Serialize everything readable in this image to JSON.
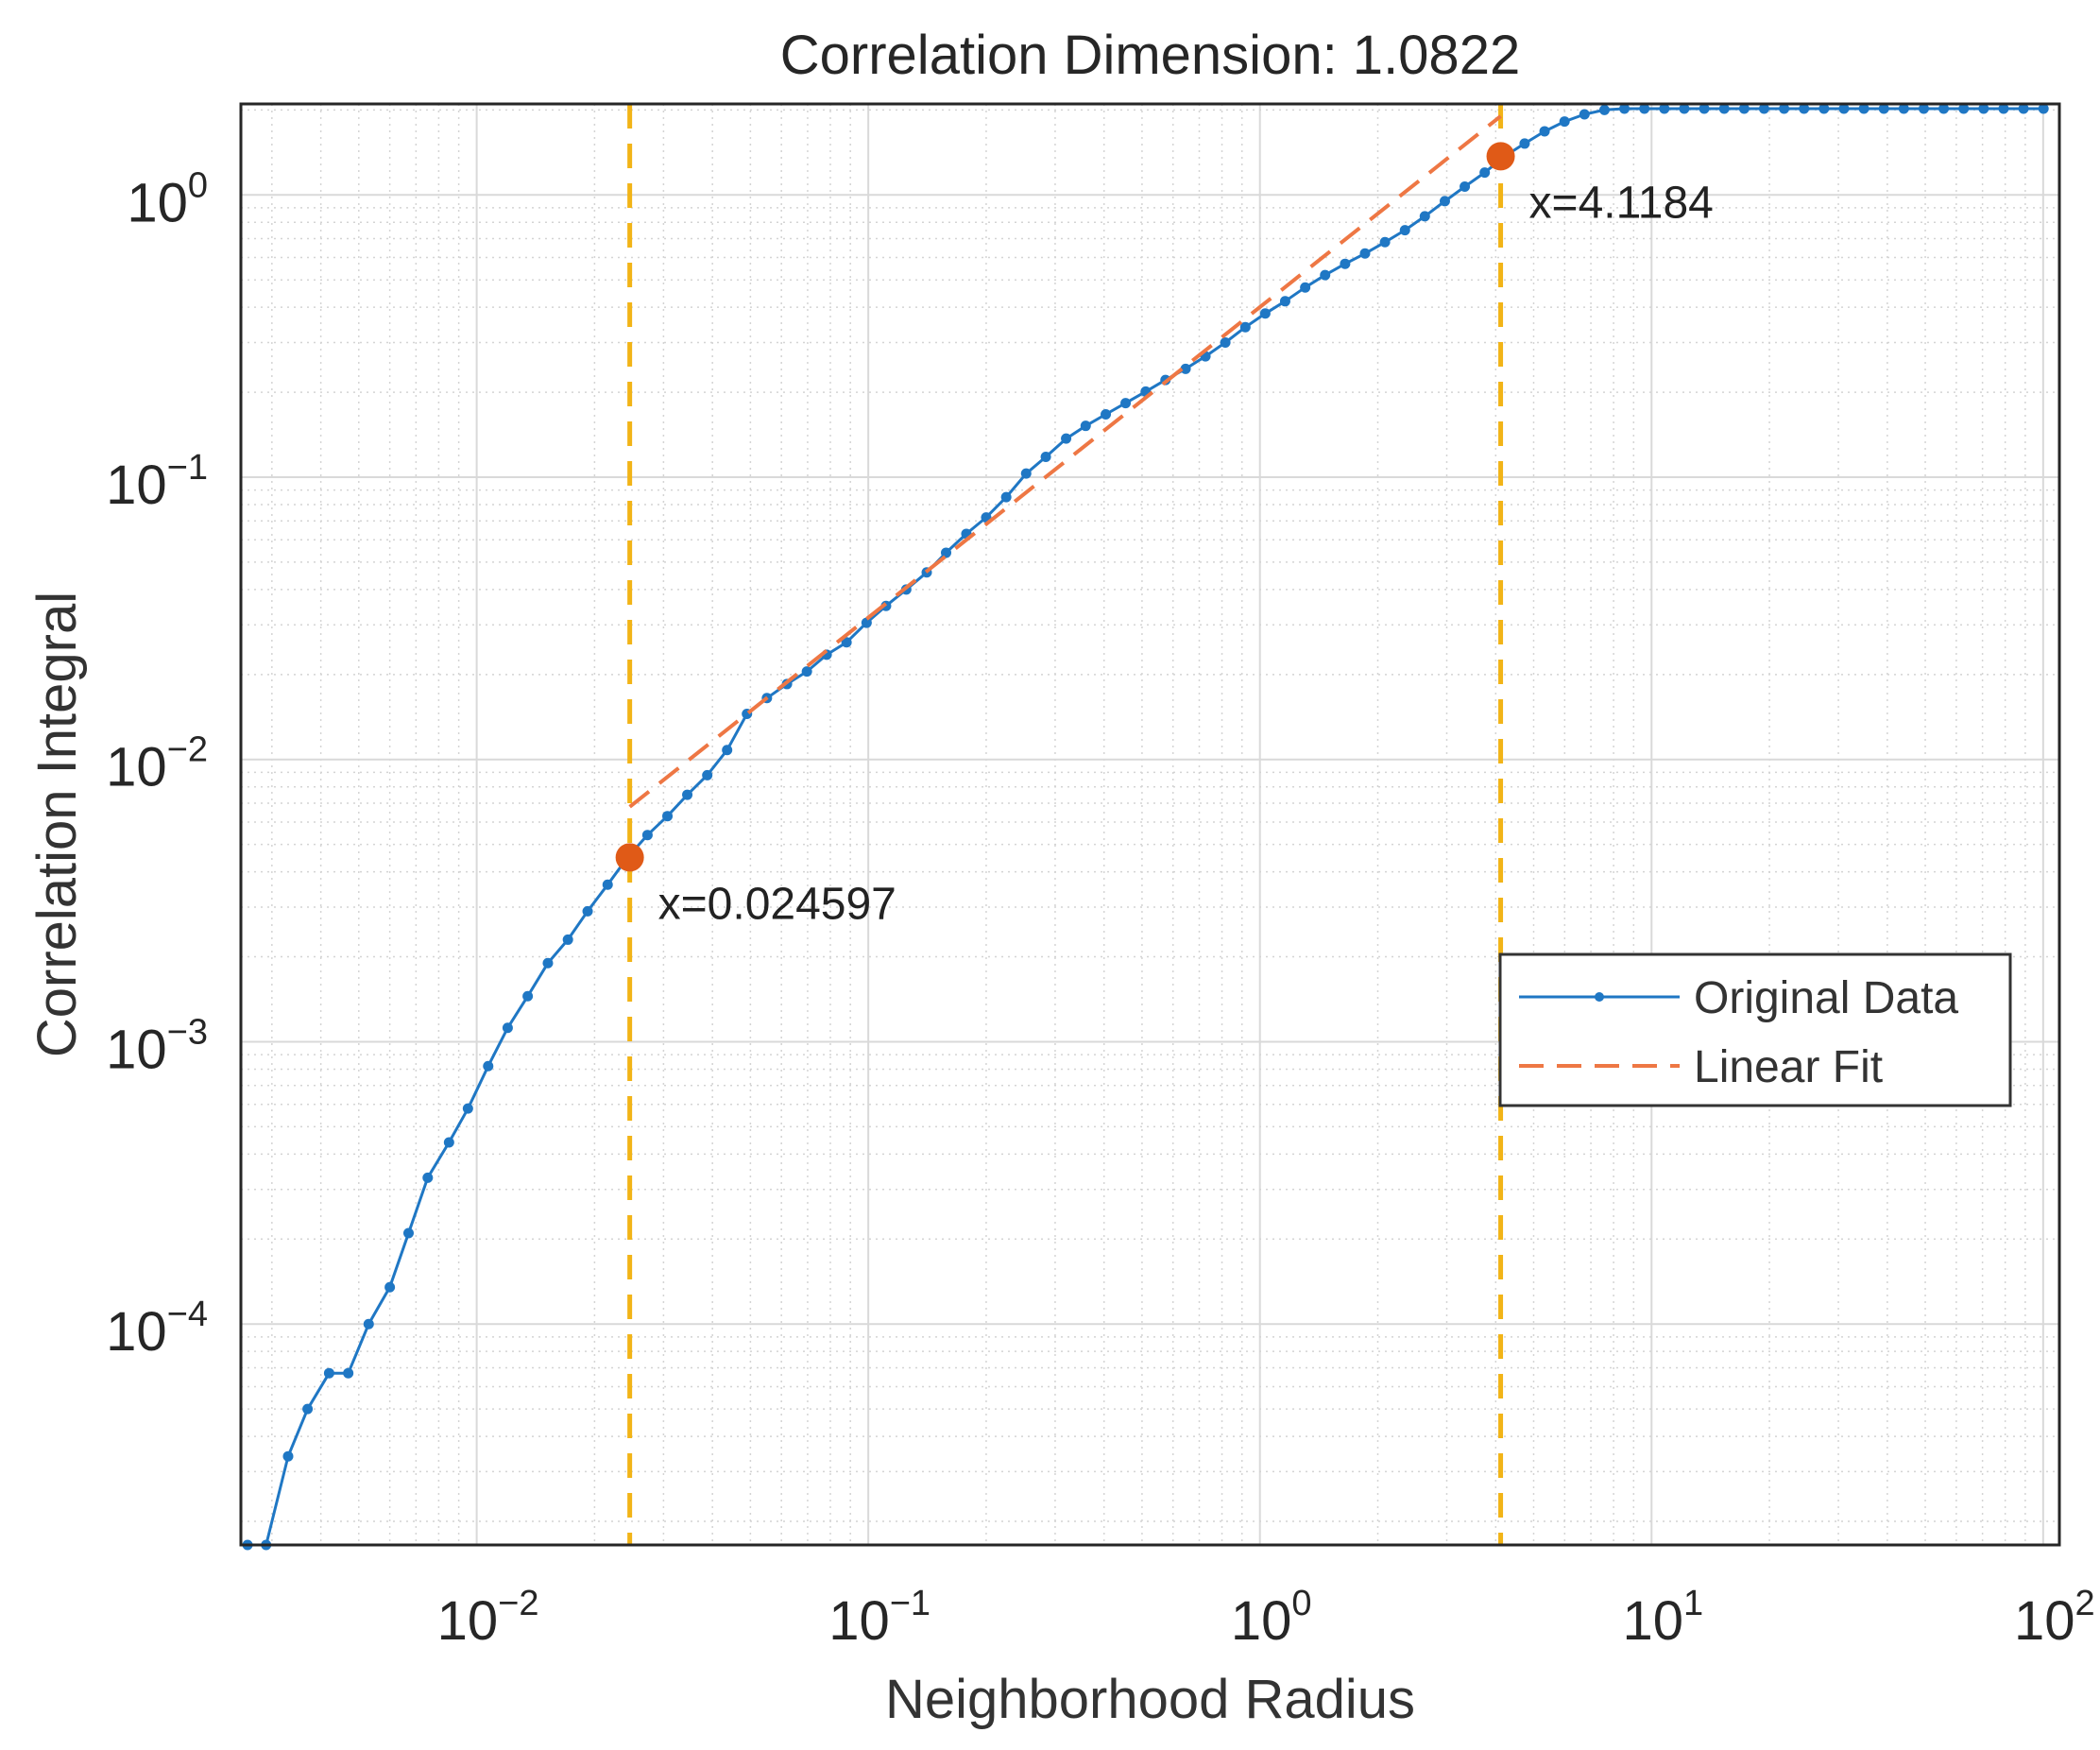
{
  "chart_data": {
    "type": "line",
    "title": "Correlation Dimension: 1.0822",
    "xlabel": "Neighborhood Radius",
    "ylabel": "Correlation Integral",
    "xscale": "log",
    "yscale": "log",
    "xlim": [
      0.0025,
      110
    ],
    "ylim": [
      1.65e-05,
      2.1
    ],
    "grid": true,
    "minor_grid": true,
    "legend_position": "lower-right",
    "x_ticks": [
      {
        "base": "10",
        "exp": "−2",
        "value": 0.01
      },
      {
        "base": "10",
        "exp": "−1",
        "value": 0.1
      },
      {
        "base": "10",
        "exp": "0",
        "value": 1
      },
      {
        "base": "10",
        "exp": "1",
        "value": 10
      },
      {
        "base": "10",
        "exp": "2",
        "value": 100
      }
    ],
    "y_ticks": [
      {
        "base": "10",
        "exp": "−4",
        "value": 0.0001
      },
      {
        "base": "10",
        "exp": "−3",
        "value": 0.001
      },
      {
        "base": "10",
        "exp": "−2",
        "value": 0.01
      },
      {
        "base": "10",
        "exp": "−1",
        "value": 0.1
      },
      {
        "base": "10",
        "exp": "0",
        "value": 1
      }
    ],
    "series": [
      {
        "name": "Original Data",
        "style": "solid-dot",
        "color": "#1f77c4",
        "x": [
          0.0026,
          0.0029,
          0.0033,
          0.0037,
          0.0042,
          0.0047,
          0.0053,
          0.006,
          0.0067,
          0.0075,
          0.0085,
          0.0095,
          0.0107,
          0.012,
          0.0135,
          0.0152,
          0.0171,
          0.0192,
          0.0216,
          0.0243,
          0.0273,
          0.0307,
          0.0345,
          0.0388,
          0.0436,
          0.049,
          0.0551,
          0.062,
          0.0697,
          0.0783,
          0.088,
          0.099,
          0.111,
          0.125,
          0.141,
          0.158,
          0.178,
          0.2,
          0.225,
          0.253,
          0.284,
          0.32,
          0.359,
          0.404,
          0.454,
          0.511,
          0.574,
          0.646,
          0.726,
          0.816,
          0.918,
          1.032,
          1.16,
          1.305,
          1.467,
          1.65,
          1.855,
          2.086,
          2.346,
          2.637,
          2.966,
          3.335,
          3.75,
          4.217,
          4.742,
          5.332,
          5.996,
          6.742,
          7.582,
          8.525,
          9.587,
          10.78,
          12.12,
          13.63,
          15.33,
          17.24,
          19.38,
          21.8,
          24.51,
          27.56,
          30.99,
          34.85,
          39.19,
          44.07,
          49.56,
          55.72,
          62.66,
          70.46,
          79.23,
          89.1,
          100.2
        ],
        "y": [
          1.65e-05,
          1.65e-05,
          3.4e-05,
          5e-05,
          6.7e-05,
          6.7e-05,
          0.0001,
          0.000135,
          0.00021,
          0.00033,
          0.00044,
          0.00058,
          0.00082,
          0.00112,
          0.00145,
          0.0019,
          0.0023,
          0.0029,
          0.0036,
          0.0045,
          0.0054,
          0.0063,
          0.0075,
          0.0088,
          0.0108,
          0.0145,
          0.0165,
          0.0185,
          0.0205,
          0.0235,
          0.026,
          0.0305,
          0.035,
          0.04,
          0.046,
          0.054,
          0.063,
          0.072,
          0.085,
          0.103,
          0.118,
          0.137,
          0.152,
          0.167,
          0.183,
          0.201,
          0.221,
          0.242,
          0.268,
          0.3,
          0.34,
          0.38,
          0.42,
          0.47,
          0.52,
          0.57,
          0.62,
          0.68,
          0.75,
          0.84,
          0.95,
          1.07,
          1.2,
          1.37,
          1.52,
          1.68,
          1.82,
          1.93,
          2.0,
          2.02,
          2.02,
          2.02,
          2.02,
          2.02,
          2.02,
          2.02,
          2.02,
          2.02,
          2.02,
          2.02,
          2.02,
          2.02,
          2.02,
          2.02,
          2.02,
          2.02,
          2.02,
          2.02,
          2.02,
          2.02,
          2.02
        ]
      },
      {
        "name": "Linear Fit",
        "style": "dashed",
        "color": "#ee7744",
        "x": [
          0.024597,
          4.1184
        ],
        "y": [
          0.0068,
          1.9
        ]
      }
    ],
    "vertical_lines": [
      {
        "x": 0.024597,
        "color": "#f2b417"
      },
      {
        "x": 4.1184,
        "color": "#f2b417"
      }
    ],
    "markers": [
      {
        "x": 0.024597,
        "y": 0.0045,
        "label": "x=0.024597",
        "color": "#e05a17"
      },
      {
        "x": 4.1184,
        "y": 1.37,
        "label": "x=4.1184",
        "color": "#e05a17"
      }
    ]
  }
}
